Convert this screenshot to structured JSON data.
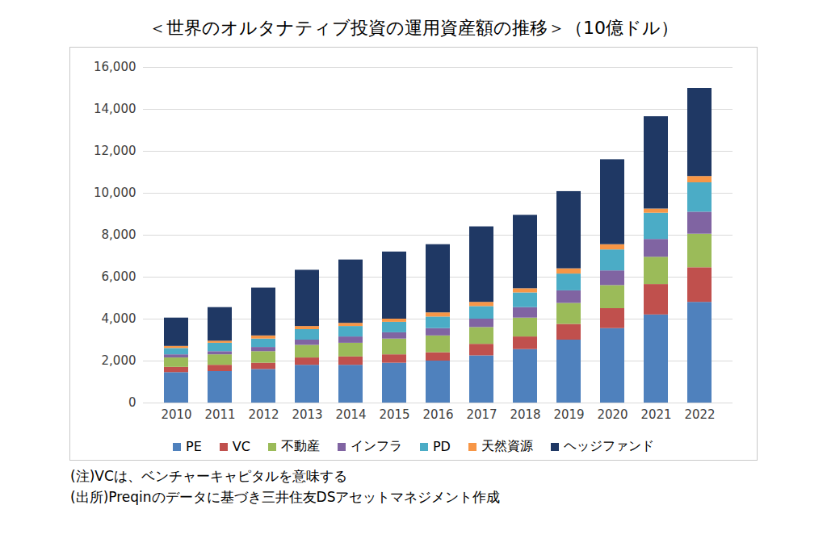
{
  "chart_data": {
    "type": "bar",
    "stacked": true,
    "title": "＜世界のオルタナティブ投資の運用資産額の推移＞（10億ドル）",
    "notes": [
      "(注)VCは、ベンチャーキャピタルを意味する",
      "(出所)Preqinのデータに基づき三井住友DSアセットマネジメント作成"
    ],
    "categories": [
      "2010",
      "2011",
      "2012",
      "2013",
      "2014",
      "2015",
      "2016",
      "2017",
      "2018",
      "2019",
      "2020",
      "2021",
      "2022"
    ],
    "series": [
      {
        "name": "PE",
        "color": "#4f81bd",
        "values": [
          1450,
          1500,
          1600,
          1800,
          1800,
          1900,
          2000,
          2250,
          2550,
          3000,
          3550,
          4200,
          4800
        ]
      },
      {
        "name": "VC",
        "color": "#c0504d",
        "values": [
          250,
          300,
          300,
          350,
          400,
          400,
          400,
          550,
          600,
          750,
          950,
          1450,
          1650
        ]
      },
      {
        "name": "不動産",
        "color": "#9bbb59",
        "values": [
          450,
          500,
          550,
          600,
          650,
          750,
          800,
          800,
          900,
          1000,
          1100,
          1300,
          1600
        ]
      },
      {
        "name": "インフラ",
        "color": "#8064a2",
        "values": [
          150,
          150,
          200,
          250,
          300,
          300,
          350,
          400,
          500,
          600,
          700,
          850,
          1050
        ]
      },
      {
        "name": "PD",
        "color": "#4bacc6",
        "values": [
          300,
          400,
          400,
          500,
          500,
          500,
          550,
          600,
          700,
          800,
          1000,
          1250,
          1400
        ]
      },
      {
        "name": "天然資源",
        "color": "#f79646",
        "values": [
          100,
          100,
          150,
          150,
          150,
          150,
          200,
          200,
          200,
          250,
          250,
          200,
          300
        ]
      },
      {
        "name": "ヘッジファンド",
        "color": "#1f3864",
        "values": [
          1350,
          1600,
          2280,
          2680,
          3020,
          3200,
          3250,
          3600,
          3500,
          3680,
          4050,
          4400,
          4200
        ]
      }
    ],
    "ylim": [
      0,
      16000
    ],
    "yticks": [
      0,
      {
        "value": 2000,
        "label": "2,000"
      },
      {
        "value": 4000,
        "label": "4,000"
      },
      {
        "value": 6000,
        "label": "6,000"
      },
      {
        "value": 8000,
        "label": "8,000"
      },
      {
        "value": 10000,
        "label": "10,000"
      },
      {
        "value": 12000,
        "label": "12,000"
      },
      {
        "value": 14000,
        "label": "14,000"
      },
      {
        "value": 16000,
        "label": "16,000"
      }
    ],
    "grid": true,
    "legend": "bottom"
  }
}
